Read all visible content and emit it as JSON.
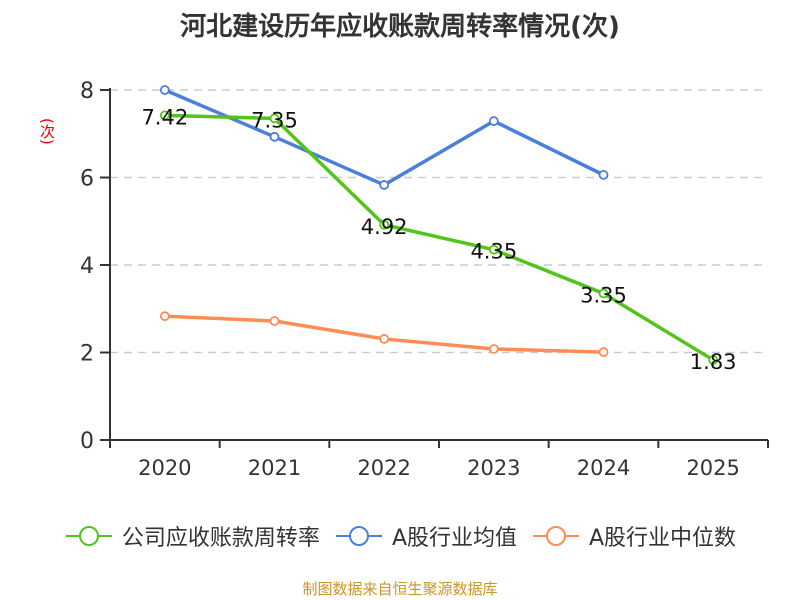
{
  "chart_data": {
    "type": "line",
    "title": "河北建设历年应收账款周转率情况(次)",
    "ylabel": "(次)",
    "xlabel": "",
    "categories": [
      "2020",
      "2021",
      "2022",
      "2023",
      "2024",
      "2025"
    ],
    "ylim": [
      0,
      8
    ],
    "yticks": [
      "0",
      "2",
      "4",
      "6",
      "8"
    ],
    "grid": true,
    "legend_position": "bottom",
    "series": [
      {
        "name": "公司应收账款周转率",
        "color": "#52c41a",
        "values": [
          7.42,
          7.35,
          4.92,
          4.35,
          3.35,
          1.83
        ],
        "labels": [
          "7.42",
          "7.35",
          "4.92",
          "4.35",
          "3.35",
          "1.83"
        ]
      },
      {
        "name": "A股行业均值",
        "color": "#4a7fdc",
        "values": [
          8.0,
          6.93,
          5.83,
          7.29,
          6.06,
          null
        ]
      },
      {
        "name": "A股行业中位数",
        "color": "#ff8c55",
        "values": [
          2.83,
          2.72,
          2.31,
          2.08,
          2.01,
          null
        ]
      }
    ],
    "source": "制图数据来自恒生聚源数据库"
  }
}
